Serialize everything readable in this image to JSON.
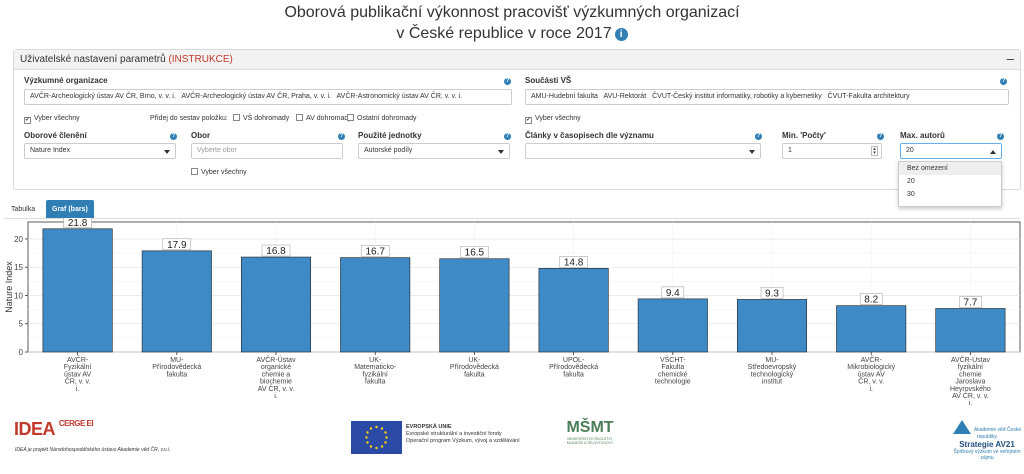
{
  "title": {
    "line1": "Oborová publikační výkonnost pracovišť výzkumných organizací",
    "line2": "v České republice v roce 2017",
    "info_icon": "info-icon"
  },
  "panel": {
    "header": "Uživatelské nastavení parametrů",
    "instructions": "(INSTRUKCE)",
    "collapse": "–",
    "vo_label": "Výzkumné organizace",
    "vo_tags": [
      "AVČR-Archeologický ústav AV ČR, Brno, v. v. i.",
      "AVČR-Archeologický ústav AV ČR, Praha, v. v. i.",
      "AVČR-Astronomický ústav AV ČR, v. v. i."
    ],
    "vs_label": "Součásti VŠ",
    "vs_tags": [
      "AMU-Hudební fakulta",
      "AVU-Rektorát",
      "ČVUT-Český institut informatiky, robotiky a kybernetiky",
      "ČVUT-Fakulta architektury"
    ],
    "select_all_vo": "Vyber všechny",
    "add_label": "Přidej do sestav položku:",
    "vs_together": "VŠ dohromady",
    "av_together": "AV dohromady",
    "others_together": "Ostatní dohromady",
    "select_all_vs": "Vyber všechny",
    "obor_cleneni_label": "Oborové členění",
    "obor_cleneni_value": "Nature Index",
    "obor_label": "Obor",
    "obor_placeholder": "Vyberte obor",
    "select_all_obor": "Vyber všechny",
    "units_label": "Použité jednotky",
    "units_value": "Autorské podíly",
    "articles_label": "Články v časopisech dle významu",
    "articles_value": "",
    "min_label": "Min. 'Počty'",
    "min_value": "1",
    "max_label": "Max. autorů",
    "max_value": "20",
    "max_options": [
      "Bez omezení",
      "20",
      "30"
    ]
  },
  "tabs": [
    "Tabulka",
    "Graf (bars)"
  ],
  "chart_data": {
    "type": "bar",
    "ylabel": "Nature Index",
    "ylim": [
      0,
      23
    ],
    "yticks": [
      0,
      5,
      10,
      15,
      20
    ],
    "categories": [
      [
        "AVČR-",
        "Fyzikální",
        "ústav AV",
        "ČR, v. v.",
        "i."
      ],
      [
        "MU-",
        "Přírodovědecká",
        "fakulta"
      ],
      [
        "AVČR-Ústav",
        "organické",
        "chemie a",
        "biochemie",
        "AV ČR, v. v.",
        "i."
      ],
      [
        "UK-",
        "Matematicko-",
        "fyzikální",
        "fakulta"
      ],
      [
        "UK-",
        "Přírodovědecká",
        "fakulta"
      ],
      [
        "UPOL-",
        "Přírodovědecká",
        "fakulta"
      ],
      [
        "VŠCHT-",
        "Fakulta",
        "chemické",
        "technologie"
      ],
      [
        "MU-",
        "Středoevropský",
        "technologický",
        "institut"
      ],
      [
        "AVČR-",
        "Mikrobiologický",
        "ústav AV",
        "ČR, v. v.",
        "i."
      ],
      [
        "AVČR-Ústav",
        "fyzikální",
        "chemie",
        "Jaroslava",
        "Heyrovského",
        "AV ČR, v. v.",
        "i."
      ]
    ],
    "values": [
      21.8,
      17.9,
      16.8,
      16.7,
      16.5,
      14.8,
      9.4,
      9.3,
      8.2,
      7.7
    ],
    "value_labels": [
      "21.8",
      "17.9",
      "16.8",
      "16.7",
      "16.5",
      "14.8",
      "9.4",
      "9.3",
      "8.2",
      "7.7"
    ],
    "bar_color": "#3d8ac6",
    "grid": true
  },
  "footer": {
    "idea": "IDEA",
    "cerge": "CERGE EI",
    "note": "IDEA je projekt Národohospodářského ústavu Akademie věd ČR, v.v.i.",
    "eu_lines": [
      "EVROPSKÁ UNIE",
      "Evropské strukturální a investiční fondy",
      "Operační program Výzkum, vývoj a vzdělávání"
    ],
    "msmt": "MŠMT",
    "msmt_sub": "MINISTERSTVO ŠKOLSTVÍ, MLÁDEŽE A TĚLOVÝCHOVY",
    "av_name": "Akademie věd České republiky",
    "strategy": "Strategie AV21",
    "strategy_sub": "Špičkový výzkum ve veřejném zájmu"
  }
}
